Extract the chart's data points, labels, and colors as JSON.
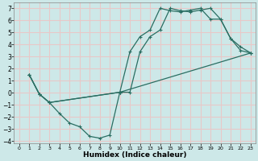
{
  "xlabel": "Humidex (Indice chaleur)",
  "xlim": [
    -0.5,
    23.5
  ],
  "ylim": [
    -4.2,
    7.5
  ],
  "xtick_vals": [
    0,
    1,
    2,
    3,
    4,
    5,
    6,
    7,
    8,
    9,
    10,
    11,
    12,
    13,
    14,
    15,
    16,
    17,
    18,
    19,
    20,
    21,
    22,
    23
  ],
  "ytick_vals": [
    -4,
    -3,
    -2,
    -1,
    0,
    1,
    2,
    3,
    4,
    5,
    6,
    7
  ],
  "bg_color": "#cde8e8",
  "grid_color": "#e8c8c8",
  "line_color": "#2a6e62",
  "line1_x": [
    1,
    2,
    3,
    4,
    5,
    6,
    7,
    8,
    9,
    10,
    11,
    12,
    13,
    14,
    15,
    16,
    17,
    18,
    19,
    20,
    21,
    22,
    23
  ],
  "line1_y": [
    1.5,
    -0.1,
    -0.8,
    -1.7,
    -2.5,
    -2.8,
    -3.6,
    -3.75,
    -3.5,
    0.05,
    0.05,
    3.4,
    4.65,
    5.2,
    7.0,
    6.8,
    6.7,
    6.85,
    7.0,
    6.1,
    4.5,
    3.8,
    3.3
  ],
  "line2_x": [
    1,
    2,
    3,
    10,
    11,
    12,
    13,
    14,
    15,
    16,
    17,
    18,
    19,
    20,
    21,
    22,
    23
  ],
  "line2_y": [
    1.5,
    -0.1,
    -0.8,
    0.05,
    3.4,
    4.65,
    5.2,
    7.0,
    6.8,
    6.7,
    6.85,
    7.0,
    6.1,
    6.1,
    4.5,
    3.5,
    3.3
  ],
  "line3_x": [
    1,
    2,
    3,
    10,
    23
  ],
  "line3_y": [
    1.5,
    -0.1,
    -0.8,
    0.05,
    3.3
  ],
  "marker": "+"
}
